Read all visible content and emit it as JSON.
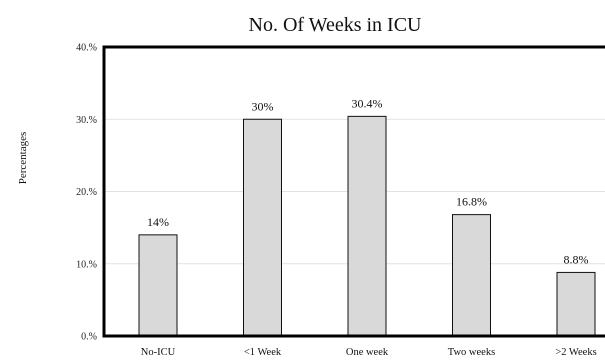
{
  "chart_data": {
    "type": "bar",
    "title": "No. Of Weeks in ICU",
    "ylabel": "Percentages",
    "xlabel": "",
    "categories": [
      "No-ICU",
      "<1 Week",
      "One week",
      "Two weeks",
      ">2 Weeks"
    ],
    "values": [
      14,
      30,
      30.4,
      16.8,
      8.8
    ],
    "value_labels": [
      "14%",
      "30%",
      "30.4%",
      "16.8%",
      "8.8%"
    ],
    "ylim": [
      0,
      40
    ],
    "yticks": [
      0,
      10,
      20,
      30,
      40
    ],
    "ytick_labels": [
      "0.%",
      "10.%",
      "20.%",
      "30.%",
      "40.%"
    ],
    "grid": true,
    "bar_color": "#d9d9d9",
    "bar_edge_color": "#111111"
  }
}
